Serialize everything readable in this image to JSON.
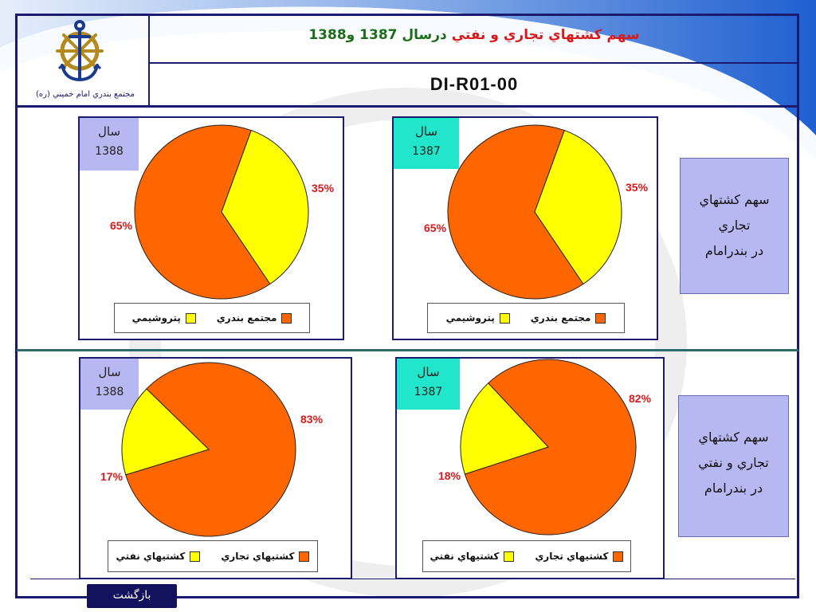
{
  "header": {
    "title_part1": "سهم کشتهاي تجاري و نفتي",
    "title_part2": "درسال 1387 و1388",
    "code": "DI-R01-00",
    "logo_caption": "مجتمع بندري امام خميني (ره)"
  },
  "colors": {
    "orange": "#ff6600",
    "yellow": "#ffff00",
    "year_1388_bg": "#b7b7f2",
    "year_1387_bg": "#22e6cc",
    "frame": "#1a1a6e",
    "label_red": "#d81a1a"
  },
  "sections": [
    {
      "side_text": [
        "سهم کشتهاي",
        "تجاري",
        "در بندرامام"
      ]
    },
    {
      "side_text": [
        "سهم کشتهاي",
        "تجاري و نفتي",
        "در بندرامام"
      ]
    }
  ],
  "chart_data": [
    {
      "type": "pie",
      "year_label": "سال",
      "year": "1388",
      "categories": [
        "مجتمع بندري",
        "پتروشيمي"
      ],
      "values": [
        65,
        35
      ],
      "data_labels": [
        "65%",
        "35%"
      ],
      "legend": [
        "مجتمع بندري",
        "پتروشيمي"
      ]
    },
    {
      "type": "pie",
      "year_label": "سال",
      "year": "1387",
      "categories": [
        "مجتمع بندري",
        "پتروشيمي"
      ],
      "values": [
        65,
        35
      ],
      "data_labels": [
        "65%",
        "35%"
      ],
      "legend": [
        "مجتمع بندري",
        "پتروشيمي"
      ]
    },
    {
      "type": "pie",
      "year_label": "سال",
      "year": "1388",
      "categories": [
        "کشتيهاي تجاري",
        "کشتيهاي نفتي"
      ],
      "values": [
        83,
        17
      ],
      "data_labels": [
        "83%",
        "17%"
      ],
      "legend": [
        "کشتيهاي تجاري",
        "کشتيهاي نفتي"
      ]
    },
    {
      "type": "pie",
      "year_label": "سال",
      "year": "1387",
      "categories": [
        "کشتيهاي تجاري",
        "کشتيهاي نفتي"
      ],
      "values": [
        82,
        18
      ],
      "data_labels": [
        "82%",
        "18%"
      ],
      "legend": [
        "کشتيهاي تجاري",
        "کشتيهاي نفتي"
      ]
    }
  ],
  "nav": {
    "back_label": "بازگشت"
  }
}
